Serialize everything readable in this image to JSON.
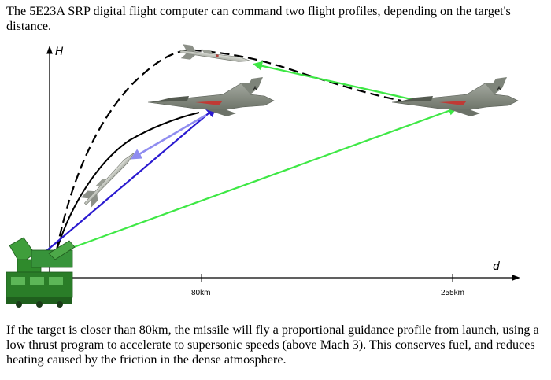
{
  "captions": {
    "top": "The 5E23A SRP digital flight computer can command two flight profiles, depending on the target's distance.",
    "bottom": "If the target is closer than 80km, the missile will fly a proportional guidance profile from launch, using a low thrust program to accelerate to supersonic speeds (above Mach 3). This conserves fuel, and reduces heating caused by the friction in the dense atmosphere."
  },
  "axes": {
    "y_label": "H",
    "x_label": "d",
    "ticks": [
      "80km",
      "255km"
    ]
  },
  "colors": {
    "near_profile_track": "#2a1ad0",
    "near_profile_illumination": "#8f8cf0",
    "far_profile": "#3ee845",
    "trajectory": "#000000",
    "launcher": "#2f8a2c",
    "jet": "#8a8f86",
    "missile": "#c8ccc4"
  },
  "icons": [
    "launcher-icon",
    "fighter-jet-icon",
    "missile-icon"
  ]
}
